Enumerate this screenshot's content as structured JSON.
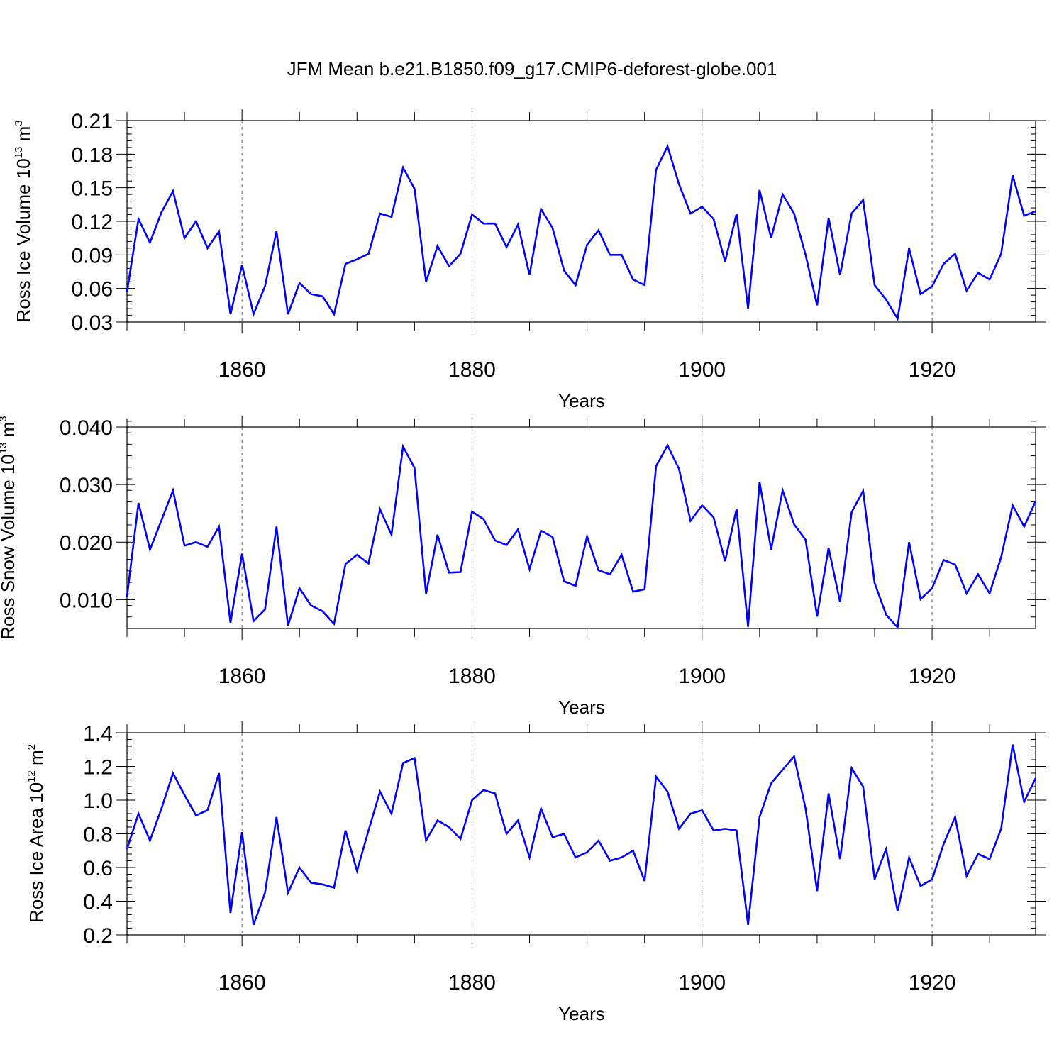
{
  "figure": {
    "title": "JFM Mean b.e21.B1850.f09_g17.CMIP6-deforest-globe.001"
  },
  "chart_data": [
    {
      "type": "line",
      "title": "",
      "xlabel": "Years",
      "ylabel": "Ross Ice Volume 10^13 m^3",
      "ylabel_parts": {
        "text": "Ross Ice Volume 10",
        "exp1": "13",
        "unit": " m",
        "exp2": "3"
      },
      "xlim": [
        1850,
        1929
      ],
      "ylim": [
        0.03,
        0.21
      ],
      "xticks": [
        1860,
        1880,
        1900,
        1920
      ],
      "xtick_labels": [
        "1860",
        "1880",
        "1900",
        "1920"
      ],
      "yticks": [
        0.03,
        0.06,
        0.09,
        0.12,
        0.15,
        0.18,
        0.21
      ],
      "ytick_labels": [
        "0.03",
        "0.06",
        "0.09",
        "0.12",
        "0.15",
        "0.18",
        "0.21"
      ],
      "line_color": "#0000ff",
      "x": [
        1850,
        1851,
        1852,
        1853,
        1854,
        1855,
        1856,
        1857,
        1858,
        1859,
        1860,
        1861,
        1862,
        1863,
        1864,
        1865,
        1866,
        1867,
        1868,
        1869,
        1870,
        1871,
        1872,
        1873,
        1874,
        1875,
        1876,
        1877,
        1878,
        1879,
        1880,
        1881,
        1882,
        1883,
        1884,
        1885,
        1886,
        1887,
        1888,
        1889,
        1890,
        1891,
        1892,
        1893,
        1894,
        1895,
        1896,
        1897,
        1898,
        1899,
        1900,
        1901,
        1902,
        1903,
        1904,
        1905,
        1906,
        1907,
        1908,
        1909,
        1910,
        1911,
        1912,
        1913,
        1914,
        1915,
        1916,
        1917,
        1918,
        1919,
        1920,
        1921,
        1922,
        1923,
        1924,
        1925,
        1926,
        1927,
        1928,
        1929
      ],
      "values": [
        0.057,
        0.122,
        0.101,
        0.128,
        0.147,
        0.105,
        0.12,
        0.096,
        0.111,
        0.037,
        0.081,
        0.037,
        0.062,
        0.111,
        0.037,
        0.065,
        0.055,
        0.053,
        0.037,
        0.082,
        0.086,
        0.091,
        0.127,
        0.124,
        0.168,
        0.149,
        0.066,
        0.098,
        0.08,
        0.091,
        0.126,
        0.118,
        0.118,
        0.097,
        0.117,
        0.072,
        0.131,
        0.114,
        0.076,
        0.063,
        0.099,
        0.112,
        0.09,
        0.09,
        0.068,
        0.063,
        0.166,
        0.187,
        0.153,
        0.127,
        0.133,
        0.122,
        0.084,
        0.127,
        0.042,
        0.148,
        0.105,
        0.144,
        0.127,
        0.09,
        0.045,
        0.123,
        0.072,
        0.127,
        0.139,
        0.063,
        0.05,
        0.033,
        0.096,
        0.055,
        0.062,
        0.082,
        0.091,
        0.058,
        0.074,
        0.068,
        0.091,
        0.161,
        0.125,
        0.129
      ]
    },
    {
      "type": "line",
      "title": "",
      "xlabel": "Years",
      "ylabel": "Ross Snow Volume 10^13 m^3",
      "ylabel_parts": {
        "text": "Ross Snow Volume 10",
        "exp1": "13",
        "unit": " m",
        "exp2": "3"
      },
      "xlim": [
        1850,
        1929
      ],
      "ylim": [
        0.005,
        0.04
      ],
      "xticks": [
        1860,
        1880,
        1900,
        1920
      ],
      "xtick_labels": [
        "1860",
        "1880",
        "1900",
        "1920"
      ],
      "yticks": [
        0.01,
        0.02,
        0.03,
        0.04
      ],
      "ytick_labels": [
        "0.010",
        "0.020",
        "0.030",
        "0.040"
      ],
      "line_color": "#0000ff",
      "x": [
        1850,
        1851,
        1852,
        1853,
        1854,
        1855,
        1856,
        1857,
        1858,
        1859,
        1860,
        1861,
        1862,
        1863,
        1864,
        1865,
        1866,
        1867,
        1868,
        1869,
        1870,
        1871,
        1872,
        1873,
        1874,
        1875,
        1876,
        1877,
        1878,
        1879,
        1880,
        1881,
        1882,
        1883,
        1884,
        1885,
        1886,
        1887,
        1888,
        1889,
        1890,
        1891,
        1892,
        1893,
        1894,
        1895,
        1896,
        1897,
        1898,
        1899,
        1900,
        1901,
        1902,
        1903,
        1904,
        1905,
        1906,
        1907,
        1908,
        1909,
        1910,
        1911,
        1912,
        1913,
        1914,
        1915,
        1916,
        1917,
        1918,
        1919,
        1920,
        1921,
        1922,
        1923,
        1924,
        1925,
        1926,
        1927,
        1928,
        1929
      ],
      "values": [
        0.0105,
        0.0268,
        0.0187,
        0.0238,
        0.029,
        0.0194,
        0.02,
        0.0192,
        0.0227,
        0.006,
        0.018,
        0.0063,
        0.0083,
        0.0227,
        0.0055,
        0.012,
        0.009,
        0.008,
        0.0058,
        0.0162,
        0.0178,
        0.0163,
        0.0257,
        0.0213,
        0.0366,
        0.0329,
        0.011,
        0.0213,
        0.0147,
        0.0148,
        0.0253,
        0.024,
        0.0203,
        0.0195,
        0.0222,
        0.0153,
        0.022,
        0.0209,
        0.0132,
        0.0124,
        0.021,
        0.0151,
        0.0144,
        0.0178,
        0.0114,
        0.0118,
        0.0332,
        0.0368,
        0.0327,
        0.0237,
        0.0264,
        0.0243,
        0.0167,
        0.0258,
        0.0053,
        0.0305,
        0.0187,
        0.029,
        0.0231,
        0.0204,
        0.0071,
        0.019,
        0.0096,
        0.0252,
        0.0289,
        0.0129,
        0.0074,
        0.0052,
        0.02,
        0.0101,
        0.012,
        0.0169,
        0.0161,
        0.0111,
        0.0144,
        0.0111,
        0.0174,
        0.0264,
        0.0227,
        0.0271
      ]
    },
    {
      "type": "line",
      "title": "",
      "xlabel": "Years",
      "ylabel": "Ross Ice Area 10^12 m^2",
      "ylabel_parts": {
        "text": "Ross Ice Area 10",
        "exp1": "12",
        "unit": " m",
        "exp2": "2"
      },
      "xlim": [
        1850,
        1929
      ],
      "ylim": [
        0.2,
        1.4
      ],
      "xticks": [
        1860,
        1880,
        1900,
        1920
      ],
      "xtick_labels": [
        "1860",
        "1880",
        "1900",
        "1920"
      ],
      "yticks": [
        0.2,
        0.4,
        0.6,
        0.8,
        1.0,
        1.2,
        1.4
      ],
      "ytick_labels": [
        "0.2",
        "0.4",
        "0.6",
        "0.8",
        "1.0",
        "1.2",
        "1.4"
      ],
      "line_color": "#0000ff",
      "x": [
        1850,
        1851,
        1852,
        1853,
        1854,
        1855,
        1856,
        1857,
        1858,
        1859,
        1860,
        1861,
        1862,
        1863,
        1864,
        1865,
        1866,
        1867,
        1868,
        1869,
        1870,
        1871,
        1872,
        1873,
        1874,
        1875,
        1876,
        1877,
        1878,
        1879,
        1880,
        1881,
        1882,
        1883,
        1884,
        1885,
        1886,
        1887,
        1888,
        1889,
        1890,
        1891,
        1892,
        1893,
        1894,
        1895,
        1896,
        1897,
        1898,
        1899,
        1900,
        1901,
        1902,
        1903,
        1904,
        1905,
        1906,
        1907,
        1908,
        1909,
        1910,
        1911,
        1912,
        1913,
        1914,
        1915,
        1916,
        1917,
        1918,
        1919,
        1920,
        1921,
        1922,
        1923,
        1924,
        1925,
        1926,
        1927,
        1928,
        1929
      ],
      "values": [
        0.71,
        0.92,
        0.76,
        0.95,
        1.16,
        1.03,
        0.91,
        0.94,
        1.16,
        0.33,
        0.81,
        0.26,
        0.45,
        0.9,
        0.45,
        0.6,
        0.51,
        0.5,
        0.48,
        0.82,
        0.58,
        0.82,
        1.05,
        0.92,
        1.22,
        1.25,
        0.76,
        0.88,
        0.84,
        0.77,
        1.0,
        1.06,
        1.04,
        0.8,
        0.88,
        0.66,
        0.95,
        0.78,
        0.8,
        0.66,
        0.69,
        0.76,
        0.64,
        0.66,
        0.7,
        0.52,
        1.14,
        1.05,
        0.83,
        0.92,
        0.94,
        0.82,
        0.83,
        0.82,
        0.26,
        0.9,
        1.1,
        1.18,
        1.26,
        0.95,
        0.46,
        1.04,
        0.65,
        1.19,
        1.08,
        0.53,
        0.71,
        0.34,
        0.66,
        0.49,
        0.53,
        0.74,
        0.9,
        0.55,
        0.68,
        0.65,
        0.83,
        1.33,
        0.99,
        1.13
      ]
    }
  ]
}
